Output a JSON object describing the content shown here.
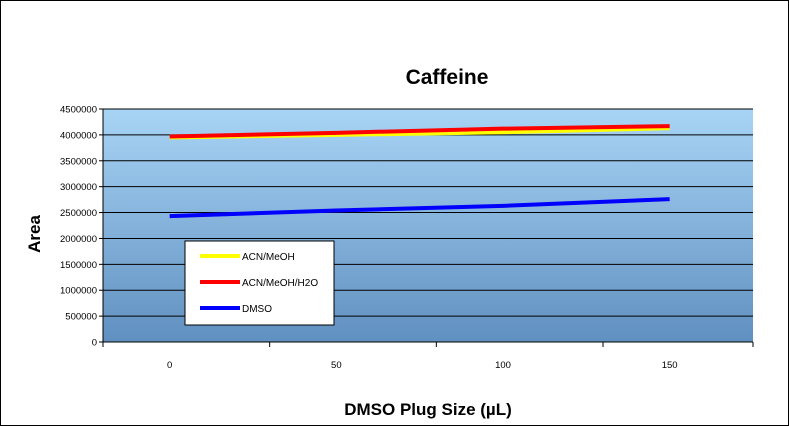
{
  "chart_data": {
    "type": "line",
    "title": "Caffeine",
    "xlabel": "DMSO Plug Size (µL)",
    "ylabel": "Area",
    "x": [
      0,
      50,
      100,
      150
    ],
    "x_tick_labels": [
      "0",
      "50",
      "100",
      "150"
    ],
    "ylim": [
      0,
      4500000
    ],
    "y_ticks": [
      0,
      500000,
      1000000,
      1500000,
      2000000,
      2500000,
      3000000,
      3500000,
      4000000,
      4500000
    ],
    "grid": true,
    "legend_position": "left-middle",
    "series": [
      {
        "name": "ACN/MeOH",
        "color": "#ffff00",
        "values": [
          3950000,
          4000000,
          4050000,
          4130000
        ]
      },
      {
        "name": "ACN/MeOH/H2O",
        "color": "#ff0000",
        "values": [
          3970000,
          4040000,
          4120000,
          4170000
        ]
      },
      {
        "name": "DMSO",
        "color": "#0000ff",
        "values": [
          2430000,
          2540000,
          2630000,
          2760000
        ]
      }
    ]
  }
}
